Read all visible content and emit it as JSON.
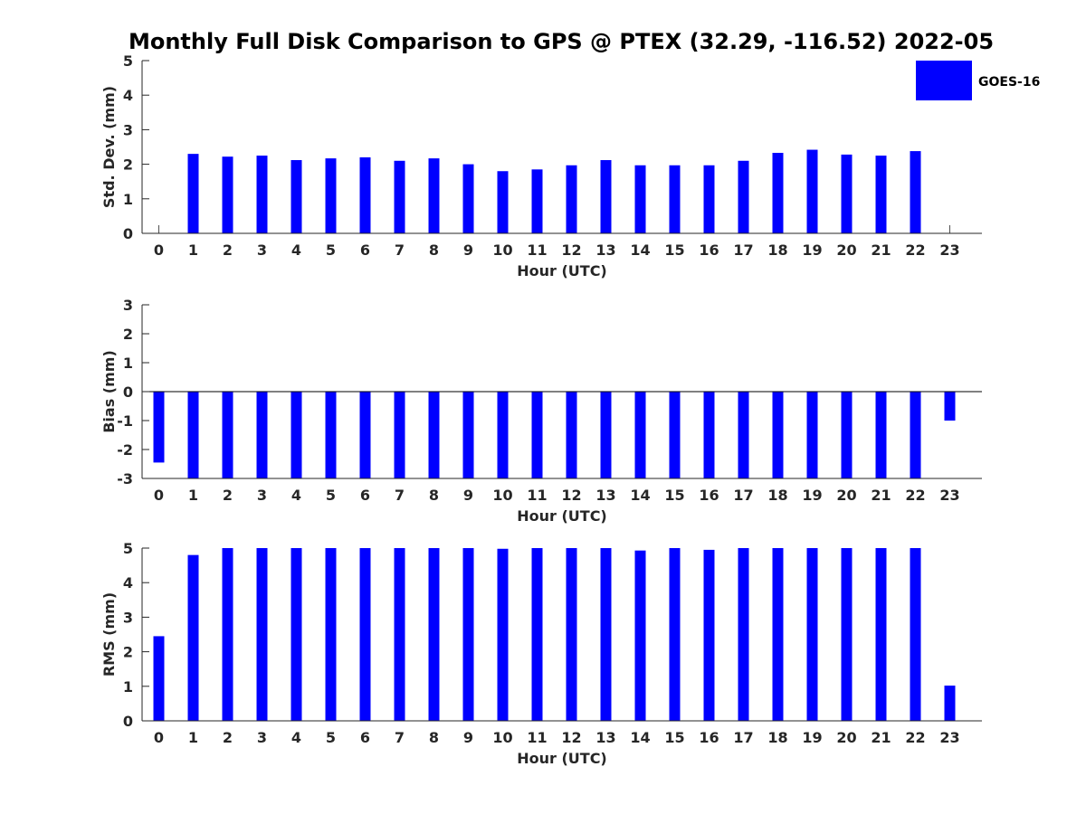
{
  "chart_data": {
    "title": "Monthly Full Disk Comparison to GPS @ PTEX (32.29, -116.52) 2022-05",
    "legend": {
      "label": "GOES-16",
      "placement": "top-right",
      "color": "#0000ff"
    },
    "bar_color": "#0000ff",
    "panels": [
      {
        "type": "bar",
        "xlabel": "Hour (UTC)",
        "ylabel": "Std. Dev. (mm)",
        "ylim": [
          0,
          5
        ],
        "yticks": [
          0,
          1,
          2,
          3,
          4,
          5
        ],
        "categories": [
          "0",
          "1",
          "2",
          "3",
          "4",
          "5",
          "6",
          "7",
          "8",
          "9",
          "10",
          "11",
          "12",
          "13",
          "14",
          "15",
          "16",
          "17",
          "18",
          "19",
          "20",
          "21",
          "22",
          "23"
        ],
        "values": [
          null,
          2.3,
          2.22,
          2.25,
          2.12,
          2.17,
          2.2,
          2.1,
          2.17,
          2.0,
          1.8,
          1.85,
          1.97,
          2.12,
          1.97,
          1.97,
          1.97,
          2.1,
          2.33,
          2.42,
          2.28,
          2.25,
          2.38,
          null
        ]
      },
      {
        "type": "bar",
        "xlabel": "Hour (UTC)",
        "ylabel": "Bias (mm)",
        "ylim": [
          -3,
          3
        ],
        "yticks": [
          -3,
          -2,
          -1,
          0,
          1,
          2,
          3
        ],
        "categories": [
          "0",
          "1",
          "2",
          "3",
          "4",
          "5",
          "6",
          "7",
          "8",
          "9",
          "10",
          "11",
          "12",
          "13",
          "14",
          "15",
          "16",
          "17",
          "18",
          "19",
          "20",
          "21",
          "22",
          "23"
        ],
        "values": [
          -2.45,
          -3,
          -3,
          -3,
          -3,
          -3,
          -3,
          -3,
          -3,
          -3,
          -3,
          -3,
          -3,
          -3,
          -3,
          -3,
          -3,
          -3,
          -3,
          -3,
          -3,
          -3,
          -3,
          -1.0
        ]
      },
      {
        "type": "bar",
        "xlabel": "Hour (UTC)",
        "ylabel": "RMS (mm)",
        "ylim": [
          0,
          5
        ],
        "yticks": [
          0,
          1,
          2,
          3,
          4,
          5
        ],
        "categories": [
          "0",
          "1",
          "2",
          "3",
          "4",
          "5",
          "6",
          "7",
          "8",
          "9",
          "10",
          "11",
          "12",
          "13",
          "14",
          "15",
          "16",
          "17",
          "18",
          "19",
          "20",
          "21",
          "22",
          "23"
        ],
        "values": [
          2.45,
          4.8,
          5,
          5,
          5,
          5,
          5,
          5,
          5,
          5,
          4.98,
          5,
          5,
          5,
          4.93,
          5,
          4.95,
          5,
          5,
          5,
          5,
          5,
          5,
          1.02
        ]
      }
    ]
  }
}
